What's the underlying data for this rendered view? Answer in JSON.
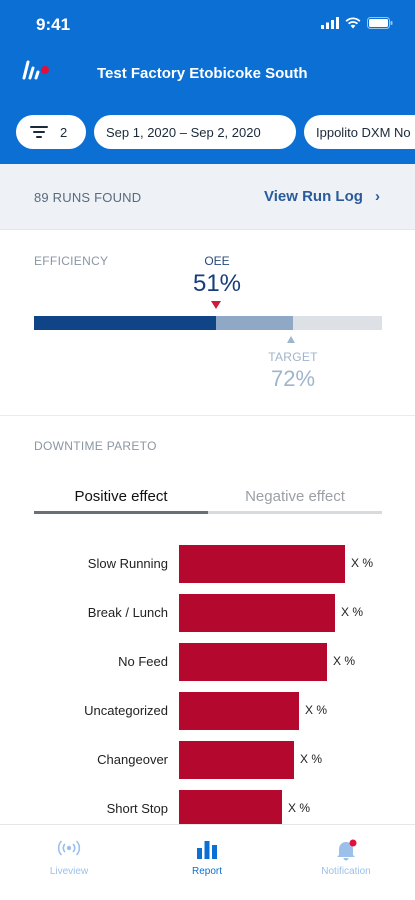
{
  "status_bar": {
    "time": "9:41"
  },
  "header": {
    "app_title": "Test Factory Etobicoke South",
    "logo_icon": "brand-logo-icon",
    "filter_count": "2",
    "date_range": "Sep 1, 2020   – Sep 2, 2020",
    "user_filter": "Ippolito DXM No"
  },
  "runs": {
    "count_label": "89 RUNS FOUND",
    "link_label": "View Run Log",
    "chevron": "›"
  },
  "efficiency": {
    "section_label": "EFFICIENCY",
    "oee_label": "OEE",
    "oee_value": "51%",
    "oee_fraction": 0.51,
    "target_label": "TARGET",
    "target_value": "72%",
    "target_fraction": 0.72,
    "colors": {
      "oee": "#0f4486",
      "target": "#8fa8c6",
      "track": "#dde1e6",
      "marker": "#d0193d"
    }
  },
  "pareto": {
    "section_label": "DOWNTIME PARETO",
    "tabs": [
      {
        "label": "Positive effect",
        "active": true
      },
      {
        "label": "Negative effect",
        "active": false
      }
    ],
    "bar_color": "#b5082f",
    "rows": [
      {
        "label": "Slow Running",
        "value_text": "X %",
        "relative": 1.0
      },
      {
        "label": "Break / Lunch",
        "value_text": "X %",
        "relative": 0.94
      },
      {
        "label": "No Feed",
        "value_text": "X %",
        "relative": 0.89
      },
      {
        "label": "Uncategorized",
        "value_text": "X %",
        "relative": 0.72
      },
      {
        "label": "Changeover",
        "value_text": "X %",
        "relative": 0.69
      },
      {
        "label": "Short Stop",
        "value_text": "X %",
        "relative": 0.62
      }
    ]
  },
  "bottom_nav": {
    "items": [
      {
        "label": "Liveview",
        "icon": "broadcast-icon",
        "active": false
      },
      {
        "label": "Report",
        "icon": "bar-chart-icon",
        "active": true
      },
      {
        "label": "Notification",
        "icon": "bell-icon",
        "active": false,
        "badge": true
      }
    ]
  }
}
